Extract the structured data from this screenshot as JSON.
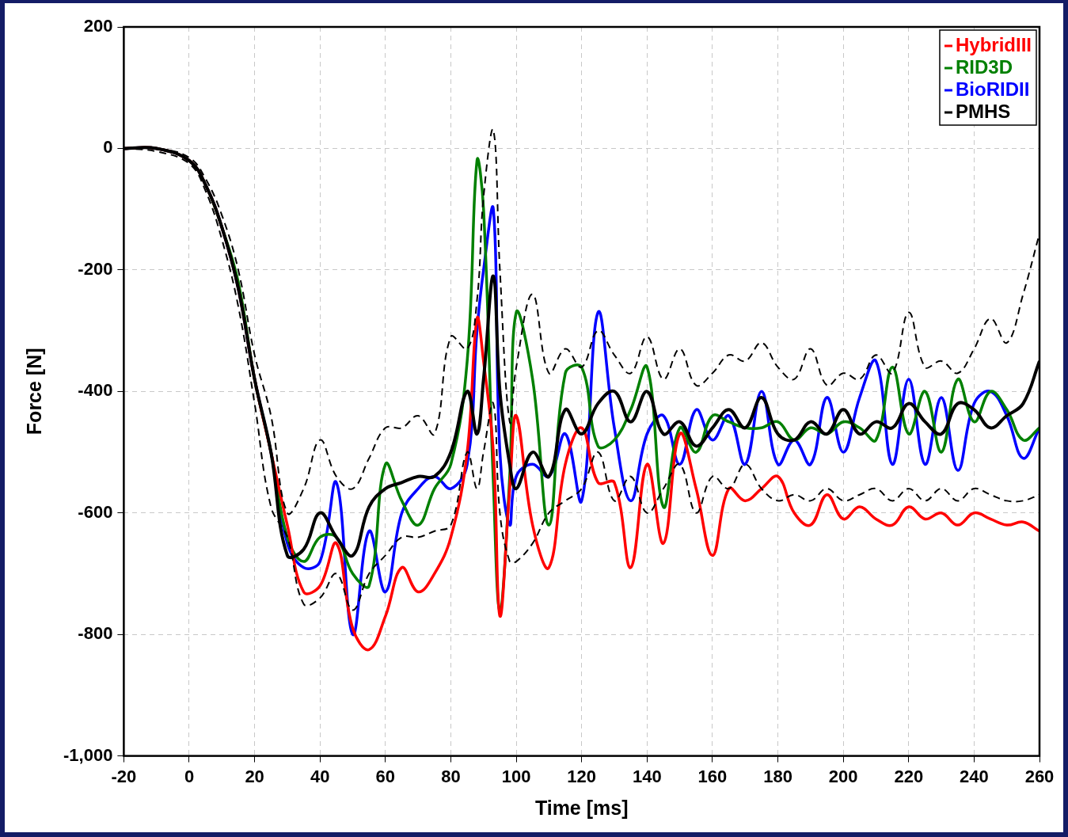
{
  "chart_data": {
    "type": "line",
    "x_label": "Time [ms]",
    "y_label": "Force [N]",
    "x": [
      -20,
      -10,
      0,
      5,
      10,
      15,
      20,
      25,
      30,
      35,
      40,
      45,
      50,
      55,
      60,
      65,
      70,
      75,
      80,
      85,
      88,
      90,
      93,
      95,
      98,
      100,
      105,
      110,
      115,
      120,
      125,
      130,
      135,
      140,
      145,
      150,
      155,
      160,
      165,
      170,
      175,
      180,
      185,
      190,
      195,
      200,
      205,
      210,
      215,
      220,
      225,
      230,
      235,
      240,
      245,
      250,
      255,
      260
    ],
    "series": [
      {
        "name": "HybridIII",
        "color": "#ff0000",
        "line_style": "solid",
        "values": [
          0,
          0,
          -20,
          -60,
          -130,
          -230,
          -380,
          -500,
          -620,
          -730,
          -720,
          -650,
          -790,
          -825,
          -770,
          -690,
          -730,
          -700,
          -640,
          -500,
          -280,
          -350,
          -500,
          -770,
          -560,
          -440,
          -620,
          -690,
          -520,
          -460,
          -550,
          -550,
          -690,
          -520,
          -650,
          -470,
          -560,
          -670,
          -560,
          -580,
          -560,
          -540,
          -600,
          -620,
          -570,
          -610,
          -590,
          -610,
          -620,
          -590,
          -610,
          -600,
          -620,
          -600,
          -610,
          -620,
          -615,
          -630
        ]
      },
      {
        "name": "RID3D",
        "color": "#008000",
        "line_style": "solid",
        "values": [
          0,
          0,
          -20,
          -60,
          -130,
          -220,
          -380,
          -500,
          -640,
          -680,
          -640,
          -640,
          -700,
          -720,
          -520,
          -580,
          -620,
          -560,
          -520,
          -350,
          -20,
          -100,
          -550,
          -760,
          -540,
          -270,
          -380,
          -620,
          -370,
          -360,
          -490,
          -480,
          -430,
          -360,
          -590,
          -460,
          -500,
          -440,
          -450,
          -460,
          -460,
          -450,
          -480,
          -460,
          -470,
          -450,
          -460,
          -480,
          -360,
          -470,
          -400,
          -500,
          -380,
          -450,
          -400,
          -430,
          -480,
          -460
        ]
      },
      {
        "name": "BioRIDII",
        "color": "#0000ff",
        "line_style": "solid",
        "values": [
          0,
          0,
          -20,
          -60,
          -130,
          -230,
          -380,
          -500,
          -650,
          -690,
          -680,
          -550,
          -800,
          -630,
          -730,
          -600,
          -560,
          -540,
          -560,
          -520,
          -300,
          -200,
          -100,
          -500,
          -620,
          -540,
          -520,
          -540,
          -470,
          -580,
          -270,
          -460,
          -580,
          -470,
          -440,
          -520,
          -430,
          -480,
          -440,
          -520,
          -400,
          -520,
          -480,
          -520,
          -410,
          -500,
          -410,
          -350,
          -520,
          -380,
          -520,
          -410,
          -530,
          -420,
          -400,
          -440,
          -510,
          -460
        ]
      },
      {
        "name": "PMHS",
        "color": "#000000",
        "line_style": "solid",
        "values": [
          0,
          0,
          -20,
          -60,
          -130,
          -230,
          -380,
          -500,
          -670,
          -660,
          -600,
          -640,
          -670,
          -590,
          -560,
          -550,
          -540,
          -540,
          -500,
          -400,
          -470,
          -380,
          -210,
          -400,
          -520,
          -560,
          -500,
          -540,
          -430,
          -470,
          -420,
          -400,
          -450,
          -400,
          -470,
          -450,
          -490,
          -460,
          -430,
          -460,
          -410,
          -470,
          -480,
          -450,
          -470,
          -430,
          -470,
          -450,
          -460,
          -420,
          -450,
          -470,
          -420,
          -430,
          -460,
          -440,
          -420,
          -350
        ],
        "upper": [
          0,
          0,
          -15,
          -50,
          -110,
          -200,
          -340,
          -440,
          -600,
          -560,
          -480,
          -540,
          -560,
          -510,
          -460,
          -460,
          -440,
          -470,
          -310,
          -330,
          -250,
          -80,
          30,
          -200,
          -450,
          -360,
          -240,
          -370,
          -330,
          -360,
          -300,
          -340,
          -370,
          -310,
          -380,
          -330,
          -390,
          -370,
          -340,
          -350,
          -320,
          -360,
          -380,
          -330,
          -390,
          -370,
          -380,
          -340,
          -370,
          -270,
          -360,
          -350,
          -370,
          -330,
          -280,
          -320,
          -240,
          -140
        ],
        "lower": [
          0,
          -5,
          -25,
          -70,
          -150,
          -260,
          -420,
          -590,
          -640,
          -750,
          -740,
          -700,
          -760,
          -700,
          -670,
          -640,
          -640,
          -630,
          -620,
          -500,
          -560,
          -500,
          -420,
          -600,
          -680,
          -680,
          -650,
          -600,
          -580,
          -560,
          -500,
          -580,
          -540,
          -600,
          -560,
          -520,
          -600,
          -540,
          -560,
          -520,
          -560,
          -580,
          -570,
          -580,
          -560,
          -580,
          -570,
          -560,
          -580,
          -560,
          -580,
          -560,
          -580,
          -560,
          -570,
          -580,
          -580,
          -570
        ]
      }
    ],
    "xlim": [
      -20,
      260
    ],
    "xticks": [
      -20,
      0,
      20,
      40,
      60,
      80,
      100,
      120,
      140,
      160,
      180,
      200,
      220,
      240,
      260
    ],
    "ylim": [
      -1000,
      200
    ],
    "yticks": [
      -1000,
      -800,
      -600,
      -400,
      -200,
      0,
      200
    ],
    "grid": true,
    "legend": "top right"
  }
}
